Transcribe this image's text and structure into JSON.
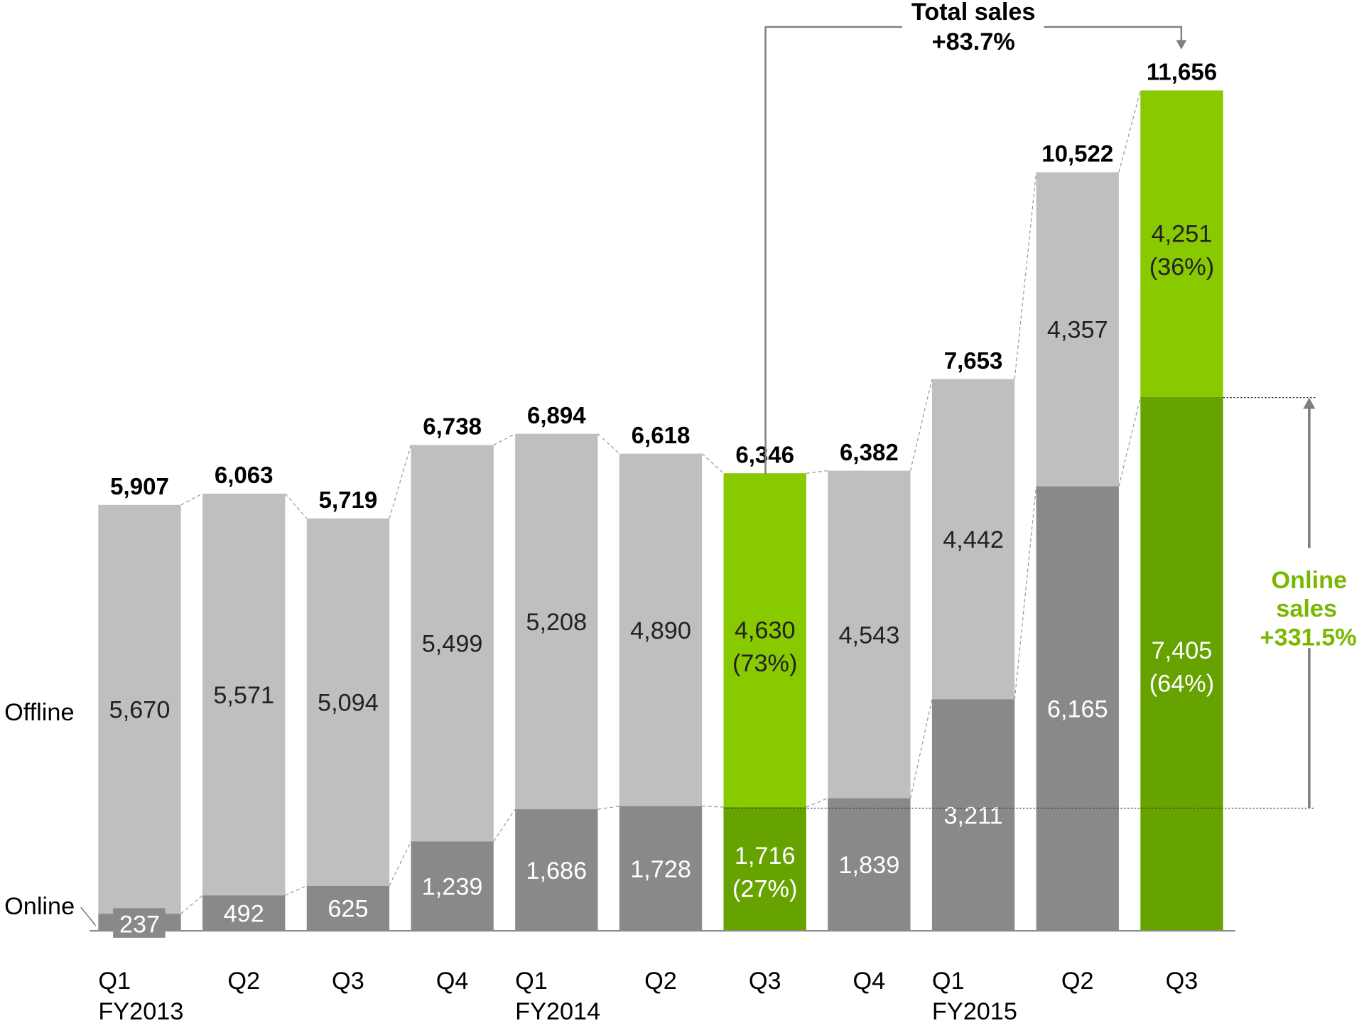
{
  "chart_data": {
    "type": "bar",
    "stacked": true,
    "categories": [
      "Q1",
      "Q2",
      "Q3",
      "Q4",
      "Q1",
      "Q2",
      "Q3",
      "Q4",
      "Q1",
      "Q2",
      "Q3"
    ],
    "fiscal_year_labels": [
      "FY2013",
      "",
      "",
      "",
      "FY2014",
      "",
      "",
      "",
      "FY2015",
      "",
      ""
    ],
    "series": [
      {
        "name": "Online",
        "values": [
          237,
          492,
          625,
          1239,
          1686,
          1728,
          1716,
          1839,
          3211,
          6165,
          7405
        ]
      },
      {
        "name": "Offline",
        "values": [
          5670,
          5571,
          5094,
          5499,
          5208,
          4890,
          4630,
          4543,
          4442,
          4357,
          4251
        ]
      }
    ],
    "value_labels": {
      "online": [
        "237",
        "492",
        "625",
        "1,239",
        "1,686",
        "1,728",
        "1,716",
        "1,839",
        "3,211",
        "6,165",
        "7,405"
      ],
      "offline": [
        "5,670",
        "5,571",
        "5,094",
        "5,499",
        "5,208",
        "4,890",
        "4,630",
        "4,543",
        "4,442",
        "4,357",
        "4,251"
      ],
      "totals": [
        "5,907",
        "6,063",
        "5,719",
        "6,738",
        "6,894",
        "6,618",
        "6,346",
        "6,382",
        "7,653",
        "10,522",
        "11,656"
      ]
    },
    "percent_labels": {
      "6": {
        "online": "(27%)",
        "offline": "(73%)"
      },
      "10": {
        "online": "(64%)",
        "offline": "(36%)"
      }
    },
    "highlighted": [
      6,
      10
    ],
    "ylim": [
      0,
      11656
    ],
    "grid": false,
    "legend_labels": {
      "offline": "Offline",
      "online": "Online"
    },
    "annotations": {
      "total_title": "Total sales",
      "total_change": "+83.7%",
      "online_line1": "Online",
      "online_line2": "sales",
      "online_change": "+331.5%"
    },
    "colors": {
      "offline": "#bfbfbf",
      "online": "#898989",
      "highlight_offline": "#88c900",
      "highlight_online": "#66a200",
      "annotation_green": "#7ab800",
      "annotation_line": "#7f7f7f"
    }
  }
}
